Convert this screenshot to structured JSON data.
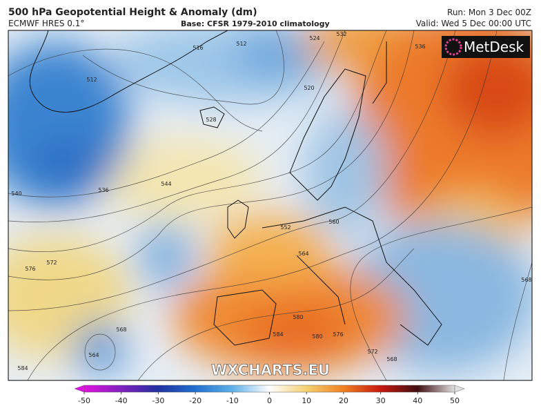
{
  "header": {
    "title": "500 hPa Geopotential Height & Anomaly (dm)",
    "model": "ECMWF HRES 0.1°",
    "base": "Base: CFSR 1979-2010 climatology",
    "run": "Run: Mon 3 Dec 00Z",
    "valid": "Valid: Wed 5 Dec 00:00 UTC"
  },
  "logo": "MetDesk",
  "watermark": "WXCHARTS.EU",
  "contour_labels": [
    "512",
    "516",
    "512",
    "524",
    "532",
    "536",
    "520",
    "528",
    "540",
    "536",
    "544",
    "552",
    "560",
    "564",
    "572",
    "576",
    "580",
    "584",
    "580",
    "576",
    "572",
    "568",
    "568",
    "564",
    "584",
    "568"
  ],
  "colorbar": {
    "range": [
      -50,
      50
    ],
    "ticks": [
      -50,
      -40,
      -30,
      -20,
      -10,
      0,
      10,
      20,
      30,
      40,
      50
    ]
  }
}
